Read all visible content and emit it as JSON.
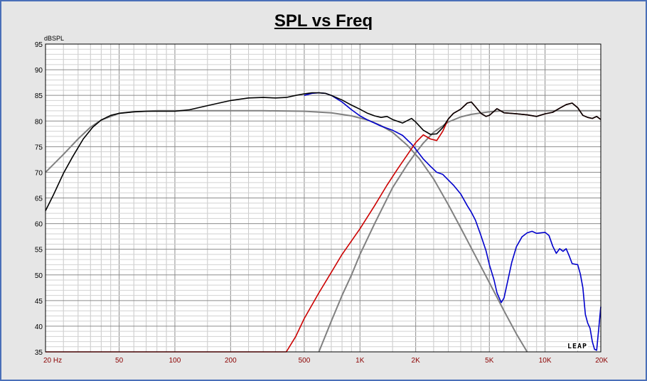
{
  "chart_data": {
    "type": "line",
    "title": "SPL vs Freq",
    "ylabel": "dBSPL",
    "xlabel": "",
    "xscale": "log",
    "xlim": [
      20,
      20000
    ],
    "ylim": [
      35,
      95
    ],
    "grid": true,
    "y_ticks": [
      35,
      40,
      45,
      50,
      55,
      60,
      65,
      70,
      75,
      80,
      85,
      90,
      95
    ],
    "x_ticks": [
      {
        "value": 20,
        "label": "20  Hz"
      },
      {
        "value": 50,
        "label": "50"
      },
      {
        "value": 100,
        "label": "100"
      },
      {
        "value": 200,
        "label": "200"
      },
      {
        "value": 500,
        "label": "500"
      },
      {
        "value": 1000,
        "label": "1K"
      },
      {
        "value": 2000,
        "label": "2K"
      },
      {
        "value": 5000,
        "label": "5K"
      },
      {
        "value": 10000,
        "label": "10K"
      },
      {
        "value": 20000,
        "label": "20K"
      }
    ],
    "series": [
      {
        "color": "#808080",
        "x": [
          20,
          25,
          30,
          35,
          40,
          50,
          60,
          80,
          100,
          150,
          200,
          300,
          500,
          700,
          900,
          1100,
          1300,
          1500,
          1800,
          2100,
          2500,
          3000,
          3500,
          4000,
          5000,
          6000,
          7000,
          8000
        ],
        "y": [
          70,
          73.5,
          76.5,
          78.8,
          80.2,
          81.5,
          81.8,
          82,
          82,
          82,
          82,
          82,
          81.9,
          81.6,
          81,
          80.2,
          79.1,
          77.8,
          75.3,
          72.6,
          68.7,
          63.7,
          59.2,
          55.2,
          48.5,
          43,
          38.5,
          35
        ]
      },
      {
        "color": "#808080",
        "x": [
          600,
          700,
          800,
          900,
          1000,
          1200,
          1500,
          1800,
          2000,
          2200,
          2500,
          3000,
          3500,
          4000,
          5000,
          6000,
          8000,
          10000,
          15000,
          20000
        ],
        "y": [
          35,
          41,
          46,
          50,
          54,
          60,
          67,
          71.5,
          73.8,
          75.7,
          77.8,
          79.8,
          80.8,
          81.3,
          81.8,
          82,
          82,
          82,
          82,
          82
        ]
      },
      {
        "color": "#0000cc",
        "x": [
          500,
          550,
          600,
          650,
          700,
          800,
          900,
          1000,
          1100,
          1200,
          1300,
          1400,
          1500,
          1700,
          1900,
          2000,
          2200,
          2400,
          2600,
          2800,
          3000,
          3200,
          3500,
          3800,
          4000,
          4200,
          4500,
          4800,
          5000,
          5300,
          5500,
          5800,
          6000,
          6300,
          6600,
          7000,
          7500,
          8000,
          8500,
          9000,
          9500,
          10000,
          10500,
          11000,
          11500,
          12000,
          12500,
          13000,
          13500,
          14000,
          14500,
          15000,
          15500,
          16000,
          16500,
          17000,
          17500,
          18000,
          18500,
          19000,
          19500,
          20000
        ],
        "y": [
          85,
          85.4,
          85.5,
          85.4,
          85,
          83.7,
          82.2,
          81,
          80.2,
          79.6,
          79,
          78.6,
          78.2,
          77.2,
          75.5,
          74.5,
          72.6,
          71.2,
          70,
          69.6,
          68.5,
          67.5,
          65.8,
          63.5,
          62.2,
          60.7,
          57.7,
          54.7,
          52,
          49,
          46.5,
          44.6,
          45.5,
          49,
          52.4,
          55.5,
          57.4,
          58.2,
          58.5,
          58.1,
          58.2,
          58.3,
          57.7,
          55.6,
          54.2,
          55.1,
          54.6,
          55.1,
          53.7,
          52.2,
          52.1,
          52,
          50.2,
          47.5,
          42.3,
          40.6,
          39.6,
          37,
          35.5,
          35.3,
          39.5,
          43.8
        ]
      },
      {
        "color": "#cc0000",
        "x": [
          20,
          100,
          300,
          400,
          450,
          500,
          600,
          700,
          800,
          1000,
          1200,
          1400,
          1600,
          1800,
          2000,
          2200,
          2400,
          2600,
          2800,
          3000,
          3200,
          3500,
          3800,
          4000,
          4200,
          4500,
          4800,
          5000,
          5500,
          6000,
          7000,
          8000,
          9000,
          10000,
          11000,
          12000,
          13000,
          14000,
          15000,
          16000,
          17000,
          18000,
          19000,
          20000
        ],
        "y": [
          35,
          35,
          35,
          35,
          38,
          41.5,
          46.5,
          50.5,
          54,
          59,
          63.5,
          67.5,
          70.7,
          73.4,
          75.8,
          77.3,
          76.5,
          76.2,
          78,
          80.4,
          81.5,
          82.3,
          83.5,
          83.7,
          82.8,
          81.5,
          80.9,
          81.1,
          82.4,
          81.6,
          81.4,
          81.2,
          80.9,
          81.4,
          81.7,
          82.5,
          83.2,
          83.5,
          82.6,
          81.1,
          80.7,
          80.5,
          80.9,
          80.3
        ]
      },
      {
        "color": "#000000",
        "x": [
          20,
          22,
          25,
          28,
          32,
          36,
          40,
          45,
          50,
          60,
          70,
          80,
          100,
          120,
          150,
          200,
          250,
          300,
          350,
          400,
          450,
          500,
          550,
          600,
          650,
          700,
          800,
          900,
          1000,
          1100,
          1200,
          1300,
          1400,
          1500,
          1700,
          1900,
          2000,
          2200,
          2400,
          2600,
          2800,
          3000,
          3200,
          3500,
          3800,
          4000,
          4200,
          4500,
          4800,
          5000,
          5500,
          6000,
          7000,
          8000,
          9000,
          10000,
          11000,
          12000,
          13000,
          14000,
          15000,
          16000,
          17000,
          18000,
          19000,
          20000
        ],
        "y": [
          62.5,
          65.5,
          69.8,
          73,
          76.5,
          78.8,
          80.2,
          81.1,
          81.5,
          81.8,
          81.9,
          81.9,
          81.9,
          82.2,
          83,
          84,
          84.5,
          84.6,
          84.5,
          84.6,
          85,
          85.3,
          85.5,
          85.5,
          85.4,
          85,
          84.1,
          83.1,
          82.3,
          81.5,
          81,
          80.7,
          80.9,
          80.3,
          79.6,
          80.5,
          79.8,
          78.2,
          77.4,
          77.5,
          78.7,
          80.4,
          81.5,
          82.3,
          83.5,
          83.7,
          82.8,
          81.5,
          80.9,
          81.1,
          82.4,
          81.6,
          81.4,
          81.2,
          80.9,
          81.4,
          81.7,
          82.5,
          83.2,
          83.5,
          82.6,
          81.1,
          80.7,
          80.5,
          80.9,
          80.3
        ]
      }
    ]
  },
  "watermark": "LEAP"
}
